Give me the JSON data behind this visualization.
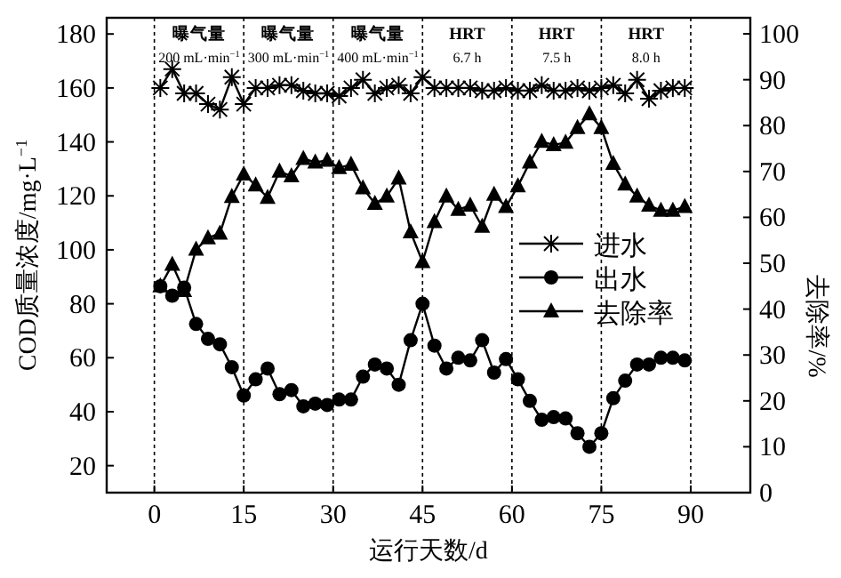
{
  "chart_data": {
    "type": "line",
    "xlabel": "运行天数/d",
    "ylabel": "COD质量浓度/mg·L$^{−1}$",
    "y2label": "去除率/%",
    "x": [
      1,
      3,
      5,
      7,
      9,
      11,
      13,
      15,
      17,
      19,
      21,
      23,
      25,
      27,
      29,
      31,
      33,
      35,
      37,
      39,
      41,
      43,
      45,
      47,
      49,
      51,
      53,
      55,
      57,
      59,
      61,
      63,
      65,
      67,
      69,
      71,
      73,
      75,
      77,
      79,
      81,
      83,
      85,
      87,
      89
    ],
    "series": [
      {
        "name": "进水",
        "color": "#000000",
        "marker": "cross",
        "values": [
          160,
          167,
          158,
          158,
          154,
          152,
          164,
          154,
          160,
          160,
          161,
          161,
          159,
          158,
          158,
          157,
          160,
          163,
          158,
          160,
          161,
          158,
          164,
          160,
          160,
          160,
          160,
          159,
          159,
          160,
          159,
          159,
          161,
          159,
          159,
          160,
          159,
          160,
          161,
          158,
          163,
          156,
          159,
          160,
          160
        ]
      },
      {
        "name": "出水",
        "color": "#000000",
        "marker": "circle",
        "values": [
          86.5,
          83,
          86,
          72.5,
          67,
          65,
          56.5,
          46,
          52,
          56,
          46.5,
          48,
          42,
          43,
          42.5,
          44.5,
          44.5,
          53,
          57.5,
          56,
          50,
          66.5,
          80,
          64.5,
          56,
          60,
          59,
          66.5,
          54.5,
          59.5,
          52,
          44,
          37,
          38,
          37.5,
          32,
          27,
          32,
          45,
          51.5,
          57.5,
          57.5,
          60,
          60,
          59
        ]
      },
      {
        "name": "去除率",
        "color": "#000000",
        "marker": "triangle",
        "axis": "y2",
        "values": [
          45,
          49.7,
          44,
          53,
          55.5,
          56.5,
          64.5,
          69.4,
          67,
          64.3,
          70,
          69,
          72.8,
          72,
          72.4,
          70.8,
          71.5,
          66.4,
          63,
          64.6,
          68.5,
          56.8,
          50.3,
          59,
          64.6,
          61.7,
          62.6,
          58,
          65,
          62.3,
          66.8,
          72,
          76.5,
          75.8,
          76.3,
          79.5,
          82.5,
          79.5,
          71.7,
          67.2,
          64.6,
          62.6,
          61.5,
          61.5,
          62.3
        ]
      }
    ],
    "xlim": [
      -8,
      100
    ],
    "xticks": [
      0,
      15,
      30,
      45,
      60,
      75,
      90
    ],
    "ylim": [
      10,
      186
    ],
    "yticks": [
      20,
      40,
      60,
      80,
      100,
      120,
      140,
      160,
      180
    ],
    "y2lim": [
      0,
      103.5
    ],
    "y2ticks": [
      0,
      10,
      20,
      30,
      40,
      50,
      60,
      70,
      80,
      90,
      100
    ],
    "ref_lines": [
      {
        "axis": "x",
        "value": 0,
        "line_style": "dotted",
        "color": "#000000"
      },
      {
        "axis": "x",
        "value": 15,
        "line_style": "dotted",
        "color": "#000000"
      },
      {
        "axis": "x",
        "value": 30,
        "line_style": "dotted",
        "color": "#000000"
      },
      {
        "axis": "x",
        "value": 45,
        "line_style": "dotted",
        "color": "#000000"
      },
      {
        "axis": "x",
        "value": 60,
        "line_style": "dotted",
        "color": "#000000"
      },
      {
        "axis": "x",
        "value": 75,
        "line_style": "dotted",
        "color": "#000000"
      },
      {
        "axis": "x",
        "value": 90,
        "line_style": "dotted",
        "color": "#000000"
      }
    ],
    "annotations": [
      "曝气量\n200 mL·min$^{−1}$",
      "曝气量\n300 mL·min$^{−1}$",
      "曝气量\n400 mL·min$^{−1}$",
      "HRT\n6.7 h",
      "HRT\n7.5 h",
      "HRT\n8.0 h"
    ],
    "legend": "center right",
    "grid": false
  }
}
